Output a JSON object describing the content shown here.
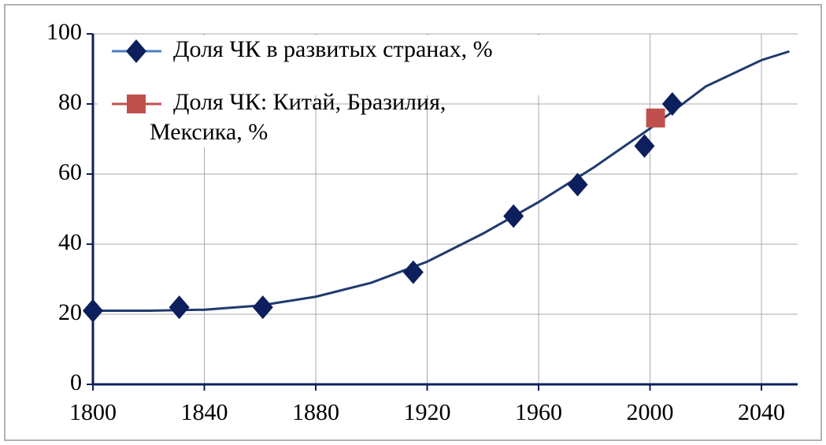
{
  "chart_data": {
    "type": "scatter",
    "xlim": [
      1800,
      2053
    ],
    "xticks": [
      1800,
      1840,
      1880,
      1920,
      1960,
      2000,
      2040
    ],
    "ylim": [
      0,
      100
    ],
    "yticks": [
      0,
      20,
      40,
      60,
      80,
      100
    ],
    "grid": true,
    "legend": "top-left",
    "series": [
      {
        "name": "Доля ЧК в развитых странах, %",
        "color": "#0d1f5c",
        "marker": "diamond",
        "x": [
          1800,
          1831,
          1861,
          1915,
          1951,
          1974,
          1998,
          2008
        ],
        "values": [
          21,
          22,
          22,
          32,
          48,
          57,
          68,
          80
        ]
      },
      {
        "name": "Доля ЧК:  Китай, Бразилия,\nМексика, %",
        "color": "#c0504d",
        "marker": "square",
        "x": [
          2002
        ],
        "values": [
          76
        ]
      }
    ],
    "trend": {
      "color": "#1f3a6e",
      "x": [
        1800,
        1820,
        1840,
        1860,
        1880,
        1900,
        1920,
        1940,
        1960,
        1980,
        2000,
        2020,
        2040,
        2050
      ],
      "values": [
        21,
        21,
        21.3,
        22.5,
        25,
        29,
        35,
        43,
        52,
        62,
        73,
        85,
        92.5,
        95
      ]
    }
  }
}
